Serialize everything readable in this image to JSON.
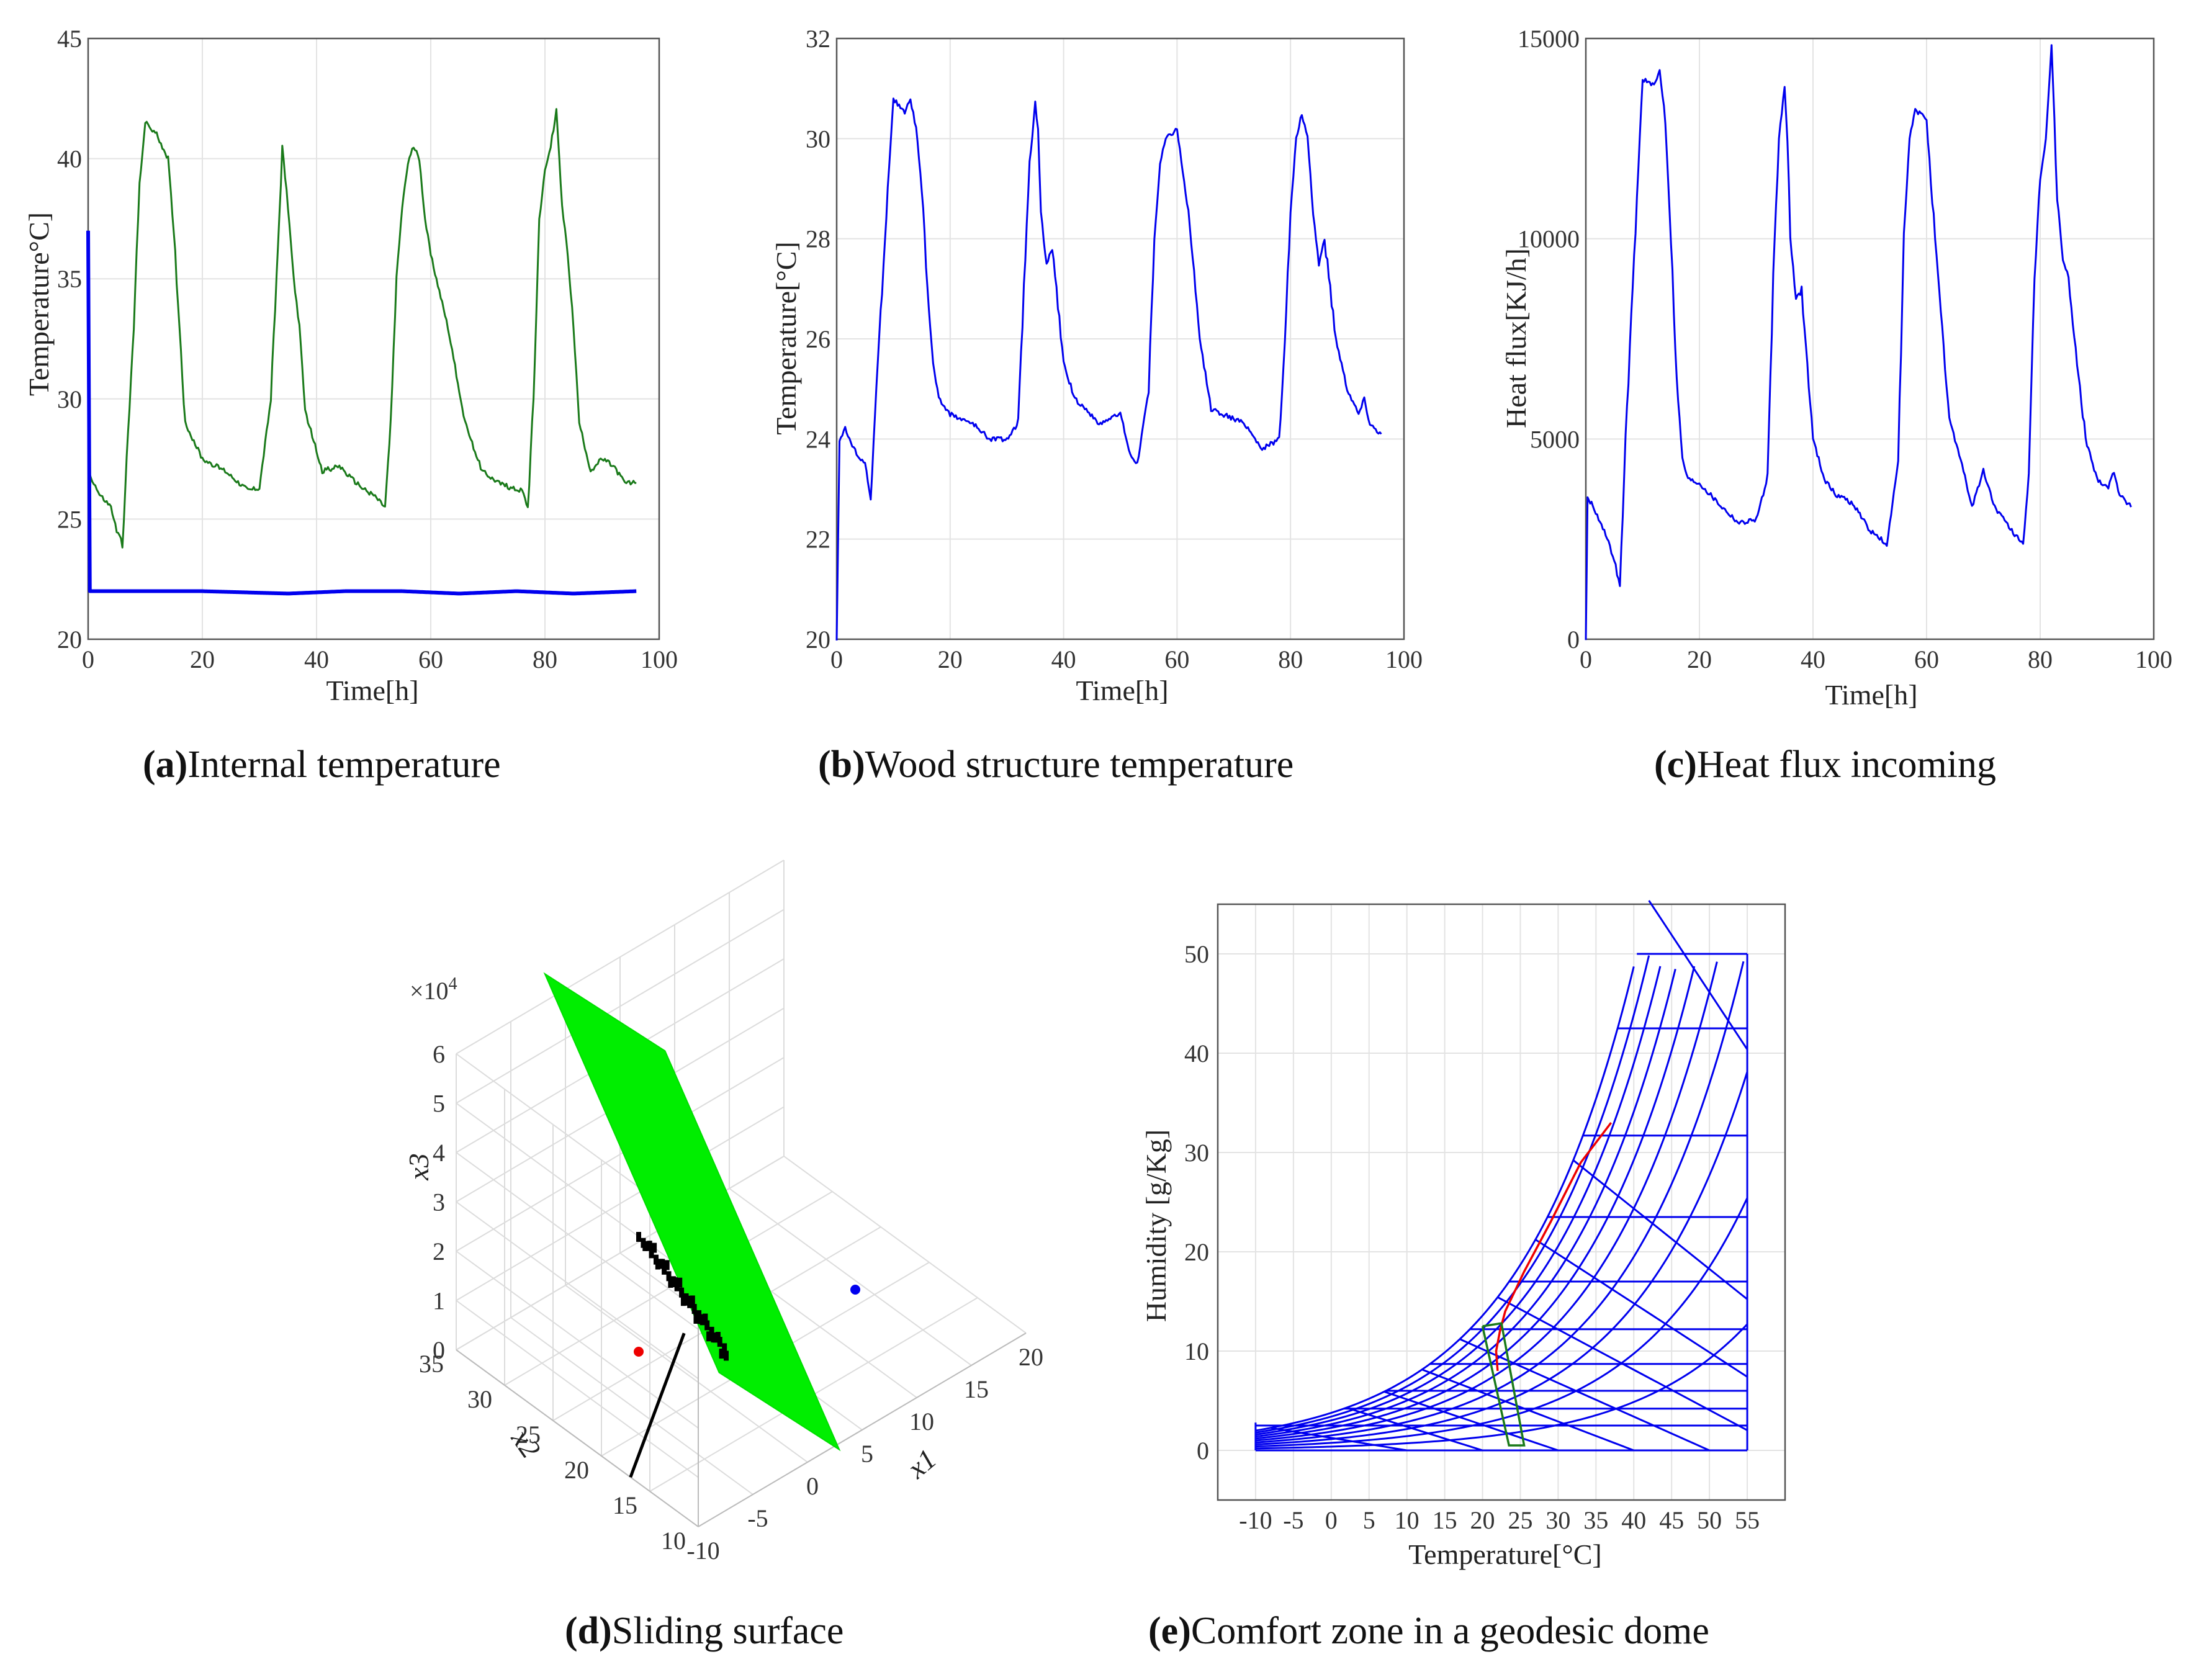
{
  "colors": {
    "green": "#1a7a1a",
    "blue": "#0000ee",
    "red": "#ee0000",
    "surface": "#00ee00",
    "black": "#000000"
  },
  "chart_data": [
    {
      "id": "a",
      "type": "line",
      "caption_letter": "a",
      "caption_text": "Internal temperature",
      "xlabel": "Time[h]",
      "ylabel": "Temperature°C]",
      "xlim": [
        0,
        100
      ],
      "ylim": [
        20,
        45
      ],
      "xticks": [
        0,
        20,
        40,
        60,
        80,
        100
      ],
      "yticks": [
        20,
        25,
        30,
        35,
        40,
        45
      ],
      "series": [
        {
          "name": "internal",
          "color": "#1a7a1a",
          "x": [
            0,
            2,
            4,
            5,
            6,
            8,
            9,
            10,
            12,
            14,
            15,
            17,
            20,
            24,
            28,
            30,
            32,
            33,
            34,
            35,
            36,
            37,
            38,
            41,
            44,
            46,
            48,
            50,
            52,
            53,
            54,
            55,
            56,
            57,
            58,
            59,
            60,
            63,
            66,
            69,
            72,
            74,
            76,
            77,
            78,
            79,
            80,
            81,
            82,
            83,
            84,
            85,
            86,
            88,
            90,
            92,
            94,
            96
          ],
          "y": [
            27,
            26,
            25.5,
            24.5,
            24,
            33,
            39,
            41.5,
            41,
            40,
            37,
            29,
            27.5,
            27,
            26.2,
            26.3,
            30,
            35,
            40.5,
            38,
            35,
            33,
            29.5,
            27,
            27.2,
            26.7,
            26.3,
            26,
            25.5,
            29,
            35,
            38,
            39.8,
            40.5,
            40,
            37.5,
            36,
            33,
            29,
            27,
            26.5,
            26.3,
            26.2,
            25.5,
            30,
            37.5,
            39.5,
            40.5,
            42,
            38,
            36,
            33,
            29,
            27,
            27.5,
            27.2,
            26.5,
            26.5
          ]
        },
        {
          "name": "setpoint",
          "color": "#0000ee",
          "x": [
            0,
            0.3,
            8,
            20,
            35,
            45,
            55,
            65,
            75,
            85,
            96
          ],
          "y": [
            37,
            22,
            22,
            22,
            21.9,
            22,
            22,
            21.9,
            22,
            21.9,
            22
          ]
        }
      ]
    },
    {
      "id": "b",
      "type": "line",
      "caption_letter": "b",
      "caption_text": "Wood structure temperature",
      "xlabel": "Time[h]",
      "ylabel": "Temperature[°C]",
      "xlim": [
        0,
        100
      ],
      "ylim": [
        20,
        32
      ],
      "xticks": [
        0,
        20,
        40,
        60,
        80,
        100
      ],
      "yticks": [
        20,
        22,
        24,
        26,
        28,
        30,
        32
      ],
      "series": [
        {
          "name": "wood",
          "color": "#0000ee",
          "x": [
            0,
            0.5,
            1.5,
            3,
            5,
            6,
            7,
            9,
            10,
            12,
            13,
            14,
            15,
            16,
            17,
            18,
            20,
            24,
            27,
            30,
            32,
            33,
            34,
            35,
            35.5,
            36,
            37,
            38,
            40,
            42,
            44,
            46,
            48,
            50,
            52,
            53,
            55,
            56,
            57,
            58,
            60,
            62,
            64,
            66,
            68,
            70,
            72,
            75,
            78,
            79,
            80,
            81,
            82,
            83,
            84,
            85,
            86,
            88,
            90,
            92,
            93,
            94,
            96
          ],
          "y": [
            20,
            24,
            24.2,
            23.8,
            23.5,
            22.8,
            25,
            29,
            30.8,
            30.5,
            30.8,
            30.2,
            29,
            27,
            25.5,
            24.8,
            24.5,
            24.3,
            24,
            24,
            24.3,
            27,
            29.5,
            30.7,
            30.2,
            28.5,
            27.5,
            27.8,
            25.5,
            24.8,
            24.6,
            24.3,
            24.4,
            24.5,
            23.6,
            23.5,
            25,
            28,
            29.5,
            30,
            30.2,
            28.5,
            26,
            24.6,
            24.5,
            24.4,
            24.3,
            23.8,
            24,
            26,
            28.5,
            30,
            30.5,
            30,
            28.5,
            27.5,
            28,
            26,
            25,
            24.5,
            24.8,
            24.3,
            24.1
          ]
        }
      ]
    },
    {
      "id": "c",
      "type": "line",
      "caption_letter": "c",
      "caption_text": "Heat flux incoming",
      "xlabel": "Time[h]",
      "ylabel": "Heat flux[KJ/h]",
      "xlim": [
        0,
        100
      ],
      "ylim": [
        0,
        15000
      ],
      "xticks": [
        0,
        20,
        40,
        60,
        80,
        100
      ],
      "yticks": [
        0,
        5000,
        10000,
        15000
      ],
      "series": [
        {
          "name": "heatflux",
          "color": "#0000ee",
          "x": [
            0,
            0.3,
            1,
            3,
            5,
            6,
            7,
            9,
            10,
            12,
            13,
            14,
            15,
            16,
            17,
            18,
            20,
            24,
            27,
            30,
            32,
            33,
            34,
            35,
            35.5,
            36,
            37,
            38,
            40,
            42,
            44,
            46,
            48,
            50,
            52,
            53,
            55,
            56,
            57,
            58,
            60,
            62,
            64,
            66,
            68,
            70,
            72,
            75,
            77,
            78,
            79,
            80,
            81,
            82,
            83,
            84,
            85,
            86,
            88,
            90,
            92,
            93,
            94,
            96
          ],
          "y": [
            0,
            3500,
            3400,
            2800,
            2000,
            1300,
            5000,
            11000,
            14000,
            13800,
            14200,
            13000,
            10000,
            6500,
            4500,
            4000,
            3900,
            3300,
            2900,
            3000,
            4000,
            9000,
            12500,
            13800,
            12500,
            10000,
            8500,
            8700,
            5000,
            4000,
            3600,
            3500,
            3200,
            2700,
            2500,
            2300,
            4500,
            10000,
            12500,
            13200,
            13000,
            9000,
            5500,
            4500,
            3300,
            4200,
            3300,
            2700,
            2400,
            4000,
            9000,
            11500,
            12500,
            14800,
            11000,
            9500,
            9000,
            7500,
            5000,
            4000,
            3800,
            4200,
            3600,
            3300
          ]
        }
      ]
    },
    {
      "id": "d",
      "type": "scatter",
      "caption_letter": "d",
      "caption_text": "Sliding surface",
      "xlabel": "x1",
      "ylabel": "x2",
      "zlabel": "x3",
      "zscale_label": "×10",
      "zscale_exp": "4",
      "xticks": [
        -10,
        -5,
        0,
        5,
        10,
        15,
        20
      ],
      "yticks": [
        10,
        15,
        20,
        25,
        30,
        35
      ],
      "zticks": [
        0,
        1,
        2,
        3,
        4,
        5,
        6
      ],
      "points": [
        {
          "name": "red-point",
          "color": "#ee0000",
          "x1": -8,
          "x2": 28,
          "x3": 0.3
        },
        {
          "name": "blue-point",
          "color": "#0000ee",
          "x1": 14,
          "x2": 32,
          "x3": 1.7
        }
      ]
    },
    {
      "id": "e",
      "type": "line",
      "caption_letter": "e",
      "caption_text": "Comfort zone in a geodesic dome",
      "xlabel": "Temperature[°C]",
      "ylabel": "Humidity [g/Kg]",
      "xlim": [
        -15,
        60
      ],
      "ylim": [
        -5,
        55
      ],
      "xticks": [
        -10,
        -5,
        0,
        5,
        10,
        15,
        20,
        25,
        30,
        35,
        40,
        45,
        50,
        55
      ],
      "yticks": [
        0,
        10,
        20,
        30,
        40,
        50
      ],
      "rh_curves": [
        1.0,
        0.8,
        0.6,
        0.4,
        0.2
      ],
      "series": [
        {
          "name": "red-trajectory",
          "color": "#ee0000",
          "x": [
            22,
            21.8,
            22.3,
            23,
            25.5,
            29,
            33,
            37
          ],
          "y": [
            8,
            10,
            12,
            14,
            18,
            23,
            29,
            33
          ]
        },
        {
          "name": "green-comfort-boundary",
          "color": "#1a7a1a",
          "x": [
            20,
            22.5,
            25.5,
            23.5,
            20
          ],
          "y": [
            12.5,
            12.8,
            0.5,
            0.5,
            12.5
          ]
        }
      ]
    }
  ]
}
